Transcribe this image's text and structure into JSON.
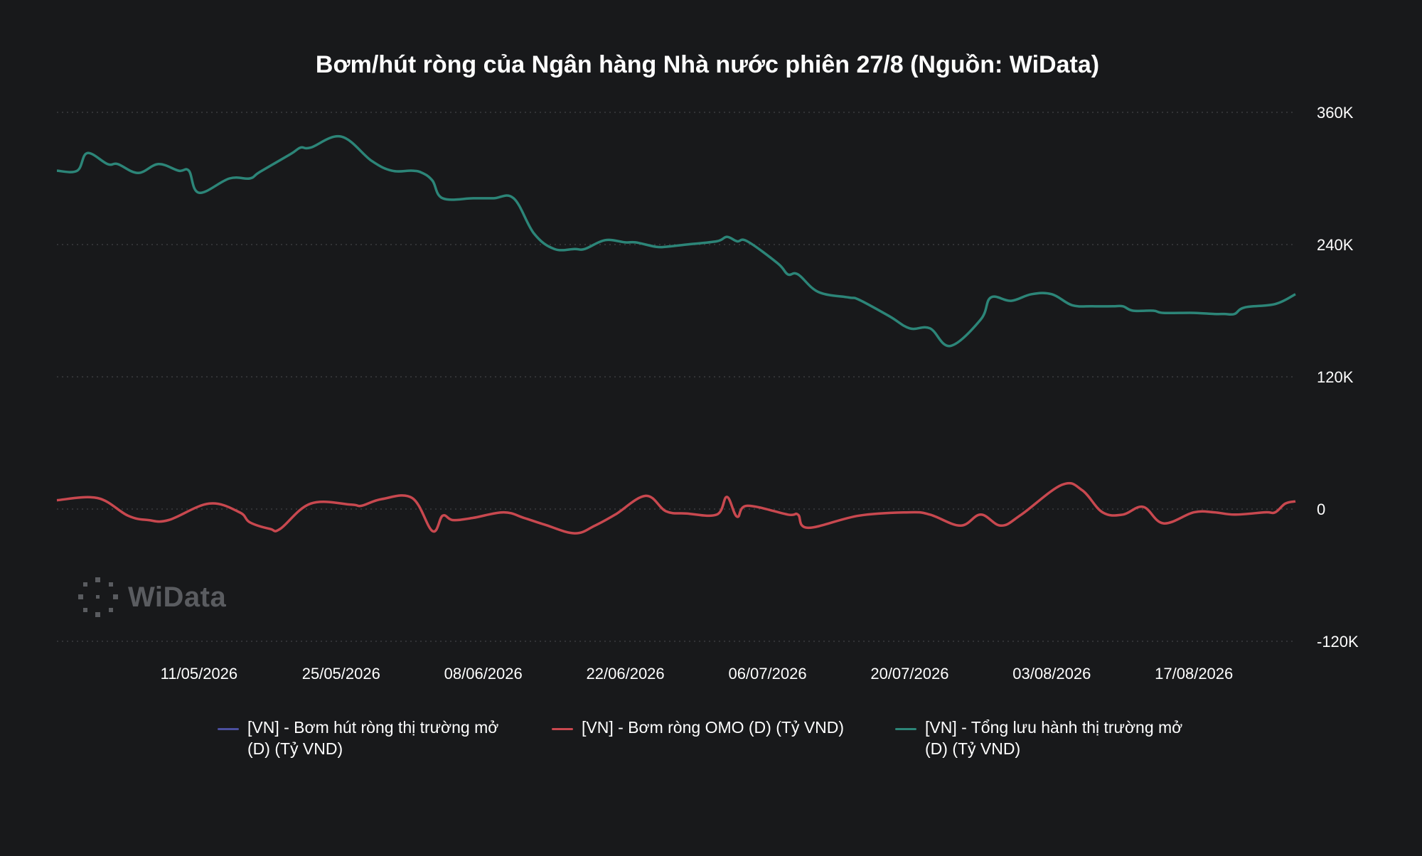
{
  "chart_data": {
    "type": "line",
    "title": "Bơm/hút ròng của Ngân hàng Nhà nước phiên 27/8 (Nguồn: WiData)",
    "x_tick_labels": [
      "11/05/2026",
      "25/05/2026",
      "08/06/2026",
      "22/06/2026",
      "06/07/2026",
      "20/07/2026",
      "03/08/2026",
      "17/08/2026"
    ],
    "y_tick_labels": [
      "360K",
      "240K",
      "120K",
      "0",
      "-120K"
    ],
    "y_ticks": [
      360000,
      240000,
      120000,
      0,
      -120000
    ],
    "ylim": [
      -120000,
      360000
    ],
    "xlim": [
      "2026-04-27",
      "2026-08-27"
    ],
    "grid": "horizontal-dotted",
    "y_axis_side": "right",
    "legend_position": "bottom",
    "series": [
      {
        "name": "[VN] - Bơm hút ròng thị trường mở\n(D) (Tỷ VND)",
        "color": "#4b4f9e",
        "x": [],
        "values": []
      },
      {
        "name": "[VN] - Bơm ròng OMO (D) (Tỷ VND)",
        "color": "#c8484f",
        "x": [
          "2026-04-27",
          "2026-05-01",
          "2026-05-04",
          "2026-05-06",
          "2026-05-08",
          "2026-05-12",
          "2026-05-15",
          "2026-05-16",
          "2026-05-18",
          "2026-05-19",
          "2026-05-22",
          "2026-05-26",
          "2026-05-27",
          "2026-05-29",
          "2026-06-01",
          "2026-06-03",
          "2026-06-04",
          "2026-06-05",
          "2026-06-07",
          "2026-06-10",
          "2026-06-12",
          "2026-06-14",
          "2026-06-17",
          "2026-06-19",
          "2026-06-21",
          "2026-06-24",
          "2026-06-26",
          "2026-06-28",
          "2026-07-01",
          "2026-07-02",
          "2026-07-03",
          "2026-07-04",
          "2026-07-08",
          "2026-07-09",
          "2026-07-10",
          "2026-07-15",
          "2026-07-20",
          "2026-07-22",
          "2026-07-25",
          "2026-07-27",
          "2026-07-29",
          "2026-07-31",
          "2026-08-04",
          "2026-08-06",
          "2026-08-08",
          "2026-08-10",
          "2026-08-12",
          "2026-08-14",
          "2026-08-17",
          "2026-08-19",
          "2026-08-21",
          "2026-08-24",
          "2026-08-25",
          "2026-08-26",
          "2026-08-27"
        ],
        "values": [
          8000,
          10000,
          -6000,
          -10000,
          -10000,
          5000,
          -3000,
          -12000,
          -18000,
          -18000,
          5000,
          4000,
          3000,
          9000,
          10000,
          -20000,
          -6000,
          -10000,
          -8000,
          -3000,
          -8000,
          -14000,
          -22000,
          -15000,
          -5000,
          12000,
          -2000,
          -4000,
          -5000,
          11000,
          -7000,
          3000,
          -5000,
          -5000,
          -17000,
          -6000,
          -3000,
          -5000,
          -15000,
          -5000,
          -15000,
          -5000,
          22000,
          17000,
          -3000,
          -5000,
          2000,
          -13000,
          -3000,
          -3000,
          -5000,
          -3000,
          -3000,
          5000,
          7000
        ]
      },
      {
        "name": "[VN] - Tổng lưu hành thị trường mở\n (D) (Tỷ VND)",
        "color": "#2c8578",
        "x": [
          "2026-04-27",
          "2026-04-29",
          "2026-04-30",
          "2026-05-02",
          "2026-05-03",
          "2026-05-05",
          "2026-05-07",
          "2026-05-09",
          "2026-05-10",
          "2026-05-11",
          "2026-05-14",
          "2026-05-16",
          "2026-05-17",
          "2026-05-20",
          "2026-05-21",
          "2026-05-22",
          "2026-05-25",
          "2026-05-28",
          "2026-05-30",
          "2026-06-01",
          "2026-06-02",
          "2026-06-03",
          "2026-06-04",
          "2026-06-07",
          "2026-06-09",
          "2026-06-11",
          "2026-06-13",
          "2026-06-15",
          "2026-06-17",
          "2026-06-18",
          "2026-06-20",
          "2026-06-22",
          "2026-06-23",
          "2026-06-25",
          "2026-06-26",
          "2026-06-28",
          "2026-07-01",
          "2026-07-02",
          "2026-07-03",
          "2026-07-04",
          "2026-07-07",
          "2026-07-08",
          "2026-07-09",
          "2026-07-11",
          "2026-07-14",
          "2026-07-15",
          "2026-07-18",
          "2026-07-20",
          "2026-07-22",
          "2026-07-24",
          "2026-07-27",
          "2026-07-28",
          "2026-07-30",
          "2026-08-01",
          "2026-08-03",
          "2026-08-05",
          "2026-08-07",
          "2026-08-09",
          "2026-08-10",
          "2026-08-11",
          "2026-08-13",
          "2026-08-14",
          "2026-08-17",
          "2026-08-19",
          "2026-08-20",
          "2026-08-21",
          "2026-08-22",
          "2026-08-25",
          "2026-08-27"
        ],
        "values": [
          307000,
          307000,
          323000,
          313000,
          313000,
          305000,
          313000,
          307000,
          307000,
          287000,
          300000,
          300000,
          306000,
          322000,
          328000,
          328000,
          338000,
          316000,
          307000,
          307000,
          305000,
          298000,
          282000,
          282000,
          282000,
          282000,
          250000,
          236000,
          236000,
          236000,
          244000,
          242000,
          242000,
          238000,
          238000,
          240000,
          243000,
          247000,
          243000,
          243000,
          223000,
          213000,
          213000,
          197000,
          192000,
          190000,
          175000,
          164000,
          164000,
          148000,
          172000,
          192000,
          189000,
          195000,
          195000,
          185000,
          184000,
          184000,
          184000,
          180000,
          180000,
          178000,
          178000,
          177000,
          177000,
          177000,
          183000,
          186000,
          195000
        ]
      }
    ],
    "watermark": "WiData"
  }
}
